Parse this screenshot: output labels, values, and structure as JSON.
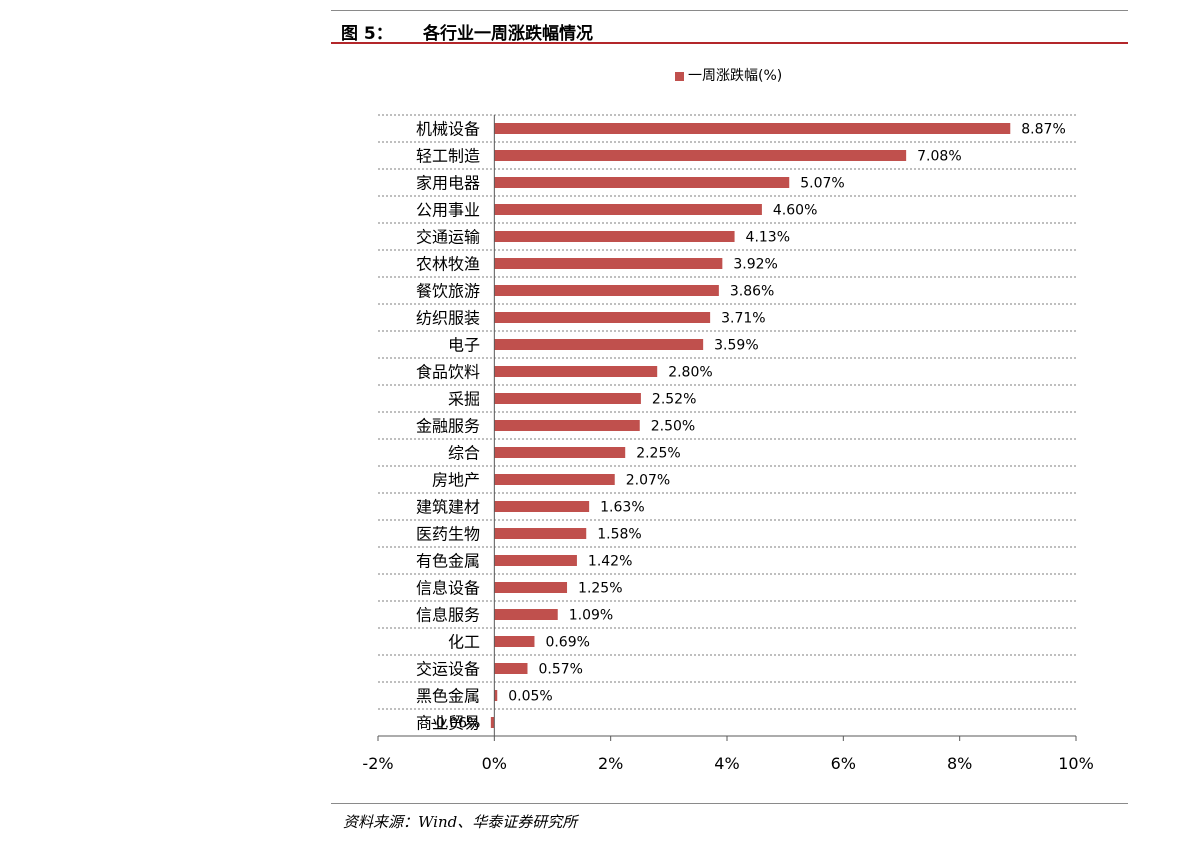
{
  "figure": {
    "number": "图 5：",
    "title": "各行业一周涨跌幅情况"
  },
  "source": "资料来源：Wind、华泰证券研究所",
  "colors": {
    "bar": "#c0504d",
    "accent_rule": "#b3262a",
    "grid": "#7f7f7f"
  },
  "chart_data": {
    "type": "bar",
    "orientation": "horizontal",
    "title": "",
    "xlabel": "",
    "ylabel": "",
    "legend": {
      "position": "top",
      "entries": [
        "一周涨跌幅(%)"
      ]
    },
    "xlim": [
      -2,
      10
    ],
    "xticks": [
      "-2%",
      "0%",
      "2%",
      "4%",
      "6%",
      "8%",
      "10%"
    ],
    "xtick_values": [
      -2,
      0,
      2,
      4,
      6,
      8,
      10
    ],
    "grid": "horizontal dashed",
    "categories": [
      "机械设备",
      "轻工制造",
      "家用电器",
      "公用事业",
      "交通运输",
      "农林牧渔",
      "餐饮旅游",
      "纺织服装",
      "电子",
      "食品饮料",
      "采掘",
      "金融服务",
      "综合",
      "房地产",
      "建筑建材",
      "医药生物",
      "有色金属",
      "信息设备",
      "信息服务",
      "化工",
      "交运设备",
      "黑色金属",
      "商业贸易"
    ],
    "series": [
      {
        "name": "一周涨跌幅(%)",
        "values": [
          8.87,
          7.08,
          5.07,
          4.6,
          4.13,
          3.92,
          3.86,
          3.71,
          3.59,
          2.8,
          2.52,
          2.5,
          2.25,
          2.07,
          1.63,
          1.58,
          1.42,
          1.25,
          1.09,
          0.69,
          0.57,
          0.05,
          -0.06
        ],
        "labels": [
          "8.87%",
          "7.08%",
          "5.07%",
          "4.60%",
          "4.13%",
          "3.92%",
          "3.86%",
          "3.71%",
          "3.59%",
          "2.80%",
          "2.52%",
          "2.50%",
          "2.25%",
          "2.07%",
          "1.63%",
          "1.58%",
          "1.42%",
          "1.25%",
          "1.09%",
          "0.69%",
          "0.57%",
          "0.05%",
          "-0.06%"
        ]
      }
    ]
  }
}
